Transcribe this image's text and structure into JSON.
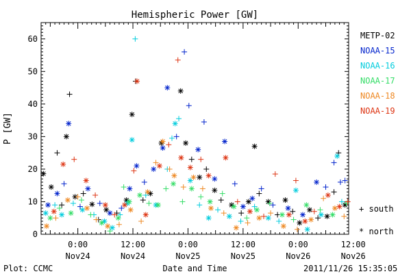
{
  "chart_data": {
    "type": "scatter",
    "title": "Hemispheric Power [GW]",
    "xlabel": "Date and Time",
    "ylabel": "P [GW]",
    "x_unit": "hours since 2011-11-23 00:00 UT",
    "xlim": [
      16,
      83
    ],
    "ylim": [
      0,
      65
    ],
    "x_major_ticks": [
      {
        "x": 24,
        "time": "0:00",
        "date": "Nov24"
      },
      {
        "x": 36,
        "time": "12:00",
        "date": "Nov24"
      },
      {
        "x": 48,
        "time": "0:00",
        "date": "Nov25"
      },
      {
        "x": 60,
        "time": "12:00",
        "date": "Nov25"
      },
      {
        "x": 72,
        "time": "0:00",
        "date": "Nov26"
      },
      {
        "x": 84,
        "time": "12:00",
        "date": "Nov26"
      }
    ],
    "y_major_ticks": [
      0,
      10,
      20,
      30,
      40,
      50,
      60
    ],
    "marker_key": [
      {
        "symbol": "+",
        "label": "south"
      },
      {
        "symbol": "*",
        "label": "north"
      }
    ],
    "series": [
      {
        "name": "METP-02",
        "color": "#000000",
        "points": [
          [
            16.5,
            18.6,
            "*"
          ],
          [
            18.2,
            14.5,
            "*"
          ],
          [
            19.5,
            25.0,
            "+"
          ],
          [
            21.5,
            30.0,
            "*"
          ],
          [
            22.2,
            43.0,
            "+"
          ],
          [
            20.5,
            9.0,
            "+"
          ],
          [
            23.4,
            11.5,
            "*"
          ],
          [
            25.2,
            12.5,
            "+"
          ],
          [
            27.1,
            9.2,
            "*"
          ],
          [
            28.5,
            4.5,
            "+"
          ],
          [
            30.2,
            7.5,
            "*"
          ],
          [
            32.5,
            6.5,
            "+"
          ],
          [
            34.6,
            10.5,
            "*"
          ],
          [
            35.8,
            36.8,
            "*"
          ],
          [
            36.6,
            47.0,
            "+"
          ],
          [
            38.2,
            10.5,
            "+"
          ],
          [
            39.8,
            12.5,
            "*"
          ],
          [
            42.2,
            28.0,
            "*"
          ],
          [
            46.4,
            44.0,
            "*"
          ],
          [
            47.5,
            28.0,
            "*"
          ],
          [
            48.8,
            23.0,
            "+"
          ],
          [
            50.5,
            17.5,
            "*"
          ],
          [
            52.0,
            20.0,
            "+"
          ],
          [
            53.8,
            13.5,
            "*"
          ],
          [
            55.2,
            10.5,
            "+"
          ],
          [
            57.5,
            9.0,
            "*"
          ],
          [
            59.6,
            6.5,
            "+"
          ],
          [
            61.2,
            10.0,
            "*"
          ],
          [
            62.5,
            27.0,
            "*"
          ],
          [
            63.5,
            12.5,
            "+"
          ],
          [
            65.5,
            10.0,
            "*"
          ],
          [
            67.5,
            6.0,
            "+"
          ],
          [
            69.2,
            10.5,
            "*"
          ],
          [
            70.8,
            7.0,
            "+"
          ],
          [
            72.3,
            3.5,
            "*"
          ],
          [
            74.5,
            7.5,
            "*"
          ],
          [
            76.3,
            5.0,
            "+"
          ],
          [
            78.3,
            5.5,
            "*"
          ],
          [
            79.8,
            13.0,
            "+"
          ],
          [
            80.8,
            25.0,
            "+"
          ],
          [
            82.2,
            9.0,
            "*"
          ]
        ]
      },
      {
        "name": "NOAA-15",
        "color": "#0022cc",
        "points": [
          [
            17.5,
            9.0,
            "*"
          ],
          [
            19.5,
            12.5,
            "*"
          ],
          [
            21.0,
            15.5,
            "+"
          ],
          [
            22.0,
            34.0,
            "*"
          ],
          [
            24.5,
            8.5,
            "+"
          ],
          [
            26.2,
            14.0,
            "*"
          ],
          [
            28.8,
            9.5,
            "+"
          ],
          [
            31.0,
            6.5,
            "*"
          ],
          [
            33.5,
            8.0,
            "+"
          ],
          [
            35.3,
            14.0,
            "*"
          ],
          [
            36.8,
            21.0,
            "*"
          ],
          [
            38.5,
            16.0,
            "+"
          ],
          [
            40.5,
            20.0,
            "*"
          ],
          [
            42.5,
            26.5,
            "*"
          ],
          [
            43.5,
            45.0,
            "*"
          ],
          [
            45.5,
            30.0,
            "+"
          ],
          [
            47.2,
            56.0,
            "+"
          ],
          [
            48.2,
            39.5,
            "+"
          ],
          [
            50.2,
            26.0,
            "*"
          ],
          [
            51.5,
            34.5,
            "+"
          ],
          [
            53.8,
            17.0,
            "*"
          ],
          [
            56.0,
            28.5,
            "*"
          ],
          [
            58.2,
            15.5,
            "+"
          ],
          [
            60.0,
            8.5,
            "*"
          ],
          [
            62.0,
            11.0,
            "*"
          ],
          [
            64.0,
            14.0,
            "+"
          ],
          [
            66.5,
            9.0,
            "+"
          ],
          [
            69.8,
            8.0,
            "*"
          ],
          [
            73.0,
            6.0,
            "*"
          ],
          [
            76.0,
            16.0,
            "*"
          ],
          [
            78.0,
            14.5,
            "+"
          ],
          [
            79.8,
            22.0,
            "+"
          ],
          [
            81.2,
            16.0,
            "+"
          ],
          [
            82.2,
            16.5,
            "+"
          ]
        ]
      },
      {
        "name": "NOAA-16",
        "color": "#00ccdd",
        "points": [
          [
            17.0,
            6.5,
            "*"
          ],
          [
            19.0,
            9.0,
            "+"
          ],
          [
            20.5,
            6.0,
            "*"
          ],
          [
            23.0,
            9.5,
            "+"
          ],
          [
            25.0,
            7.5,
            "*"
          ],
          [
            27.5,
            6.0,
            "+"
          ],
          [
            29.8,
            4.0,
            "*"
          ],
          [
            31.5,
            2.0,
            "*"
          ],
          [
            33.2,
            6.0,
            "+"
          ],
          [
            34.8,
            9.5,
            "*"
          ],
          [
            35.8,
            29.0,
            "*"
          ],
          [
            36.5,
            60.0,
            "+"
          ],
          [
            38.8,
            12.0,
            "+"
          ],
          [
            41.0,
            9.0,
            "*"
          ],
          [
            43.5,
            20.0,
            "+"
          ],
          [
            44.5,
            29.5,
            "+"
          ],
          [
            45.2,
            34.0,
            "*"
          ],
          [
            46.0,
            35.5,
            "+"
          ],
          [
            48.5,
            16.5,
            "*"
          ],
          [
            50.5,
            9.0,
            "+"
          ],
          [
            52.5,
            5.0,
            "*"
          ],
          [
            54.5,
            7.5,
            "+"
          ],
          [
            57.0,
            5.5,
            "*"
          ],
          [
            59.5,
            4.0,
            "+"
          ],
          [
            62.5,
            8.5,
            "+"
          ],
          [
            65.5,
            5.0,
            "*"
          ],
          [
            67.8,
            4.0,
            "+"
          ],
          [
            71.5,
            13.5,
            "*"
          ],
          [
            74.0,
            1.5,
            "*"
          ],
          [
            77.0,
            6.0,
            "*"
          ],
          [
            80.5,
            24.0,
            "*"
          ],
          [
            81.5,
            10.0,
            "+"
          ]
        ]
      },
      {
        "name": "NOAA-17",
        "color": "#33dd66",
        "points": [
          [
            18.0,
            5.0,
            "*"
          ],
          [
            20.0,
            8.0,
            "+"
          ],
          [
            22.5,
            6.5,
            "*"
          ],
          [
            24.8,
            10.5,
            "+"
          ],
          [
            26.8,
            6.0,
            "+"
          ],
          [
            29.2,
            3.5,
            "*"
          ],
          [
            31.0,
            1.0,
            "+"
          ],
          [
            32.8,
            5.0,
            "*"
          ],
          [
            34.0,
            14.5,
            "+"
          ],
          [
            35.2,
            10.0,
            "*"
          ],
          [
            37.5,
            12.0,
            "*"
          ],
          [
            39.5,
            9.5,
            "+"
          ],
          [
            41.5,
            9.0,
            "*"
          ],
          [
            43.2,
            14.0,
            "+"
          ],
          [
            44.8,
            15.5,
            "*"
          ],
          [
            46.8,
            10.0,
            "+"
          ],
          [
            48.8,
            14.0,
            "*"
          ],
          [
            50.8,
            11.5,
            "+"
          ],
          [
            52.8,
            10.0,
            "*"
          ],
          [
            55.5,
            12.5,
            "+"
          ],
          [
            58.0,
            8.5,
            "*"
          ],
          [
            60.8,
            5.0,
            "+"
          ],
          [
            63.0,
            7.5,
            "*"
          ],
          [
            65.8,
            9.5,
            "+"
          ],
          [
            68.5,
            6.0,
            "*"
          ],
          [
            71.0,
            4.5,
            "+"
          ],
          [
            73.8,
            9.0,
            "*"
          ],
          [
            76.8,
            7.5,
            "+"
          ],
          [
            79.5,
            6.0,
            "*"
          ],
          [
            82.5,
            9.5,
            "+"
          ]
        ]
      },
      {
        "name": "NOAA-18",
        "color": "#ee8822",
        "points": [
          [
            17.2,
            2.5,
            "*"
          ],
          [
            19.2,
            5.0,
            "+"
          ],
          [
            21.8,
            10.5,
            "*"
          ],
          [
            24.0,
            11.5,
            "+"
          ],
          [
            26.0,
            8.0,
            "*"
          ],
          [
            28.0,
            4.5,
            "+"
          ],
          [
            30.5,
            2.5,
            "*"
          ],
          [
            33.0,
            3.0,
            "+"
          ],
          [
            35.5,
            7.5,
            "*"
          ],
          [
            37.8,
            4.0,
            "+"
          ],
          [
            39.2,
            13.0,
            "*"
          ],
          [
            41.0,
            22.0,
            "+"
          ],
          [
            42.5,
            28.5,
            "*"
          ],
          [
            44.0,
            20.0,
            "+"
          ],
          [
            45.0,
            18.0,
            "*"
          ],
          [
            47.0,
            14.5,
            "+"
          ],
          [
            49.2,
            17.5,
            "*"
          ],
          [
            51.2,
            14.0,
            "+"
          ],
          [
            53.0,
            8.0,
            "*"
          ],
          [
            55.8,
            6.5,
            "+"
          ],
          [
            58.5,
            2.0,
            "*"
          ],
          [
            61.0,
            3.5,
            "+"
          ],
          [
            63.5,
            5.0,
            "*"
          ],
          [
            66.0,
            6.5,
            "+"
          ],
          [
            68.8,
            2.5,
            "*"
          ],
          [
            71.8,
            1.5,
            "+"
          ],
          [
            74.8,
            4.5,
            "*"
          ],
          [
            77.5,
            11.0,
            "+"
          ],
          [
            80.0,
            8.0,
            "*"
          ],
          [
            82.0,
            5.5,
            "+"
          ]
        ]
      },
      {
        "name": "NOAA-19",
        "color": "#dd3311",
        "points": [
          [
            18.8,
            7.0,
            "*"
          ],
          [
            20.8,
            21.5,
            "*"
          ],
          [
            23.2,
            23.0,
            "+"
          ],
          [
            25.8,
            16.5,
            "*"
          ],
          [
            27.8,
            12.0,
            "+"
          ],
          [
            30.0,
            9.0,
            "*"
          ],
          [
            32.0,
            6.0,
            "+"
          ],
          [
            34.2,
            9.0,
            "*"
          ],
          [
            36.2,
            19.5,
            "+"
          ],
          [
            36.9,
            47.0,
            "*"
          ],
          [
            38.8,
            6.0,
            "*"
          ],
          [
            41.8,
            21.0,
            "*"
          ],
          [
            43.8,
            27.5,
            "+"
          ],
          [
            45.8,
            53.5,
            "+"
          ],
          [
            46.5,
            23.5,
            "*"
          ],
          [
            48.5,
            20.5,
            "*"
          ],
          [
            50.8,
            23.0,
            "+"
          ],
          [
            52.5,
            18.0,
            "*"
          ],
          [
            56.2,
            23.5,
            "*"
          ],
          [
            58.8,
            10.0,
            "+"
          ],
          [
            61.5,
            7.0,
            "*"
          ],
          [
            64.5,
            5.5,
            "+"
          ],
          [
            67.0,
            18.5,
            "+"
          ],
          [
            70.0,
            6.0,
            "*"
          ],
          [
            71.5,
            16.5,
            "+"
          ],
          [
            73.5,
            4.0,
            "*"
          ],
          [
            75.5,
            7.0,
            "+"
          ],
          [
            78.5,
            12.0,
            "*"
          ],
          [
            81.0,
            8.5,
            "*"
          ],
          [
            82.8,
            10.0,
            "+"
          ]
        ]
      }
    ]
  },
  "footer": {
    "left": "Plot: CCMC",
    "right": "2011/11/26 15:35:05"
  },
  "colors": {
    "background": "#ffffff",
    "axis": "#000000"
  }
}
